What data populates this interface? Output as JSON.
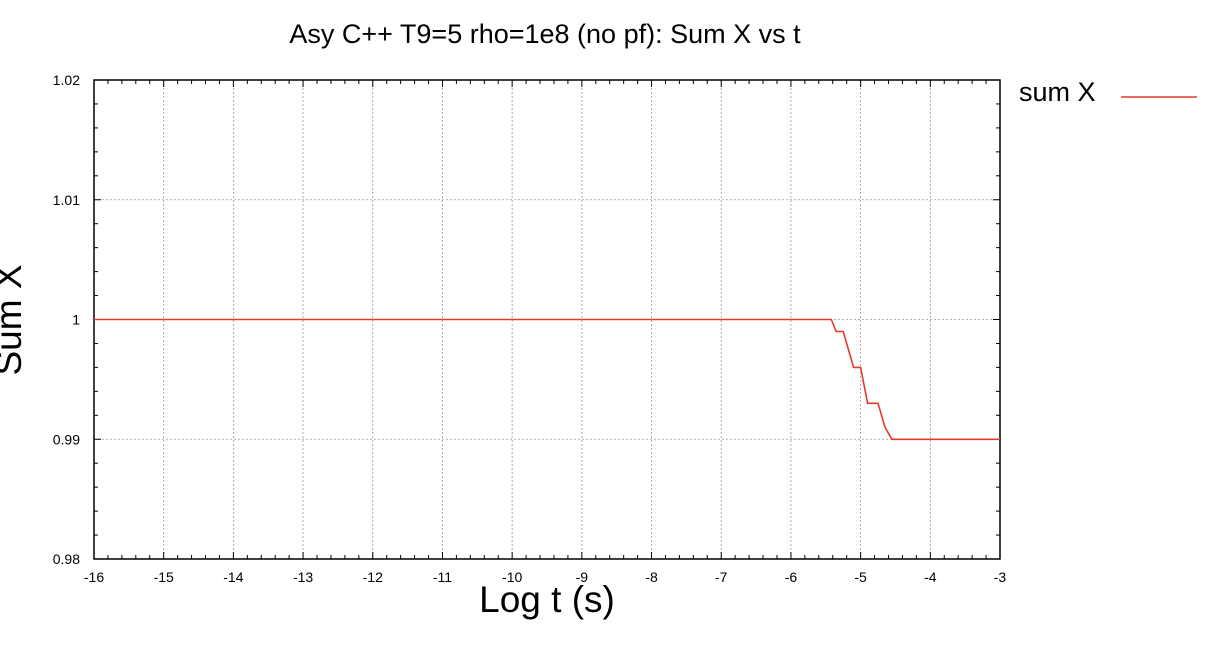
{
  "chart_data": {
    "type": "line",
    "title": "Asy C++ T9=5 rho=1e8 (no pf): Sum X  vs t",
    "xlabel": "Log t (s)",
    "ylabel": "Sum X",
    "xlim": [
      -16,
      -3
    ],
    "ylim": [
      0.98,
      1.02
    ],
    "xticks": [
      "-16",
      "-15",
      "-14",
      "-13",
      "-12",
      "-11",
      "-10",
      "-9",
      "-8",
      "-7",
      "-6",
      "-5",
      "-4",
      "-3"
    ],
    "yticks": [
      "0.98",
      "0.99",
      "1",
      "1.01",
      "1.02"
    ],
    "grid": true,
    "legend_position": "top-right outside",
    "series": [
      {
        "name": "sum X",
        "color": "#e03c2c",
        "x": [
          -16,
          -5.42,
          -5.35,
          -5.25,
          -5.1,
          -5.0,
          -4.9,
          -4.75,
          -4.65,
          -4.55,
          -3
        ],
        "y": [
          1.0,
          1.0,
          0.999,
          0.999,
          0.996,
          0.996,
          0.993,
          0.993,
          0.991,
          0.99,
          0.99
        ]
      }
    ]
  }
}
